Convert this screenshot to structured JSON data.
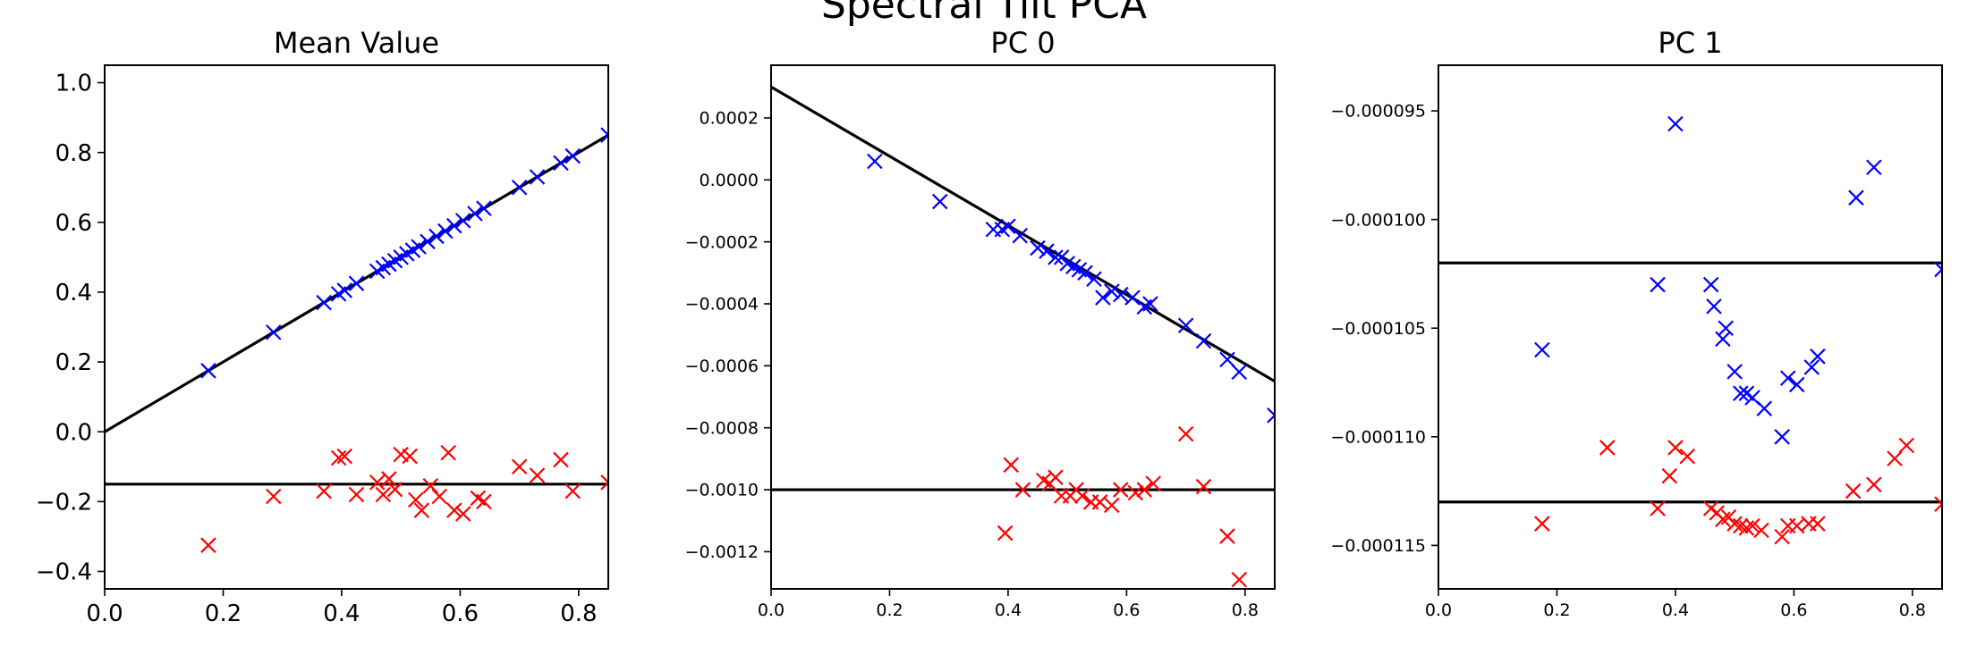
{
  "figure": {
    "suptitle": "Spectral Tilt PCA"
  },
  "chart_data": [
    {
      "type": "scatter",
      "title": "Mean Value",
      "xlim": [
        0.0,
        0.85
      ],
      "ylim": [
        -0.45,
        1.05
      ],
      "xticks": [
        0.0,
        0.2,
        0.4,
        0.6,
        0.8
      ],
      "xtick_labels": [
        "0.0",
        "0.2",
        "0.4",
        "0.6",
        "0.8"
      ],
      "yticks": [
        -0.4,
        -0.2,
        0.0,
        0.2,
        0.4,
        0.6,
        0.8,
        1.0
      ],
      "ytick_labels": [
        "−0.4",
        "−0.2",
        "0.0",
        "0.2",
        "0.4",
        "0.6",
        "0.8",
        "1.0"
      ],
      "lines": [
        {
          "x": [
            0.0,
            0.85
          ],
          "y": [
            0.0,
            0.85
          ]
        },
        {
          "x": [
            0.0,
            0.85
          ],
          "y": [
            -0.15,
            -0.15
          ]
        }
      ],
      "series": [
        {
          "color": "#0000ff",
          "marker": "x",
          "x": [
            0.175,
            0.285,
            0.37,
            0.395,
            0.405,
            0.425,
            0.46,
            0.47,
            0.48,
            0.49,
            0.5,
            0.51,
            0.52,
            0.53,
            0.545,
            0.56,
            0.575,
            0.59,
            0.605,
            0.625,
            0.64,
            0.7,
            0.73,
            0.77,
            0.79,
            0.85
          ],
          "y": [
            0.175,
            0.285,
            0.37,
            0.395,
            0.405,
            0.425,
            0.46,
            0.47,
            0.48,
            0.49,
            0.5,
            0.51,
            0.52,
            0.53,
            0.545,
            0.56,
            0.575,
            0.59,
            0.605,
            0.625,
            0.64,
            0.7,
            0.73,
            0.77,
            0.79,
            0.85
          ]
        },
        {
          "color": "#ff0000",
          "marker": "x",
          "x": [
            0.175,
            0.285,
            0.37,
            0.395,
            0.405,
            0.425,
            0.46,
            0.47,
            0.48,
            0.49,
            0.5,
            0.515,
            0.525,
            0.535,
            0.55,
            0.565,
            0.58,
            0.59,
            0.605,
            0.63,
            0.64,
            0.7,
            0.73,
            0.77,
            0.79,
            0.85
          ],
          "y": [
            -0.325,
            -0.185,
            -0.17,
            -0.075,
            -0.07,
            -0.18,
            -0.145,
            -0.18,
            -0.135,
            -0.165,
            -0.065,
            -0.07,
            -0.195,
            -0.225,
            -0.155,
            -0.185,
            -0.06,
            -0.225,
            -0.235,
            -0.19,
            -0.2,
            -0.1,
            -0.125,
            -0.08,
            -0.17,
            -0.145
          ]
        }
      ]
    },
    {
      "type": "scatter",
      "title": "PC 0",
      "xlim": [
        0.0,
        0.85
      ],
      "ylim": [
        -0.00132,
        0.00037
      ],
      "xticks": [
        0.0,
        0.2,
        0.4,
        0.6,
        0.8
      ],
      "xtick_labels": [
        "0.0",
        "0.2",
        "0.4",
        "0.6",
        "0.8"
      ],
      "yticks": [
        -0.0012,
        -0.001,
        -0.0008,
        -0.0006,
        -0.0004,
        -0.0002,
        0.0,
        0.0002
      ],
      "ytick_labels": [
        "−0.0012",
        "−0.0010",
        "−0.0008",
        "−0.0006",
        "−0.0004",
        "−0.0002",
        "0.0000",
        "0.0002"
      ],
      "lines": [
        {
          "x": [
            0.0,
            0.85
          ],
          "y": [
            0.0003,
            -0.00065
          ]
        },
        {
          "x": [
            0.0,
            0.85
          ],
          "y": [
            -0.001,
            -0.001
          ]
        }
      ],
      "series": [
        {
          "color": "#0000ff",
          "marker": "x",
          "x": [
            0.175,
            0.285,
            0.375,
            0.39,
            0.4,
            0.42,
            0.45,
            0.465,
            0.48,
            0.49,
            0.5,
            0.51,
            0.52,
            0.53,
            0.545,
            0.56,
            0.575,
            0.59,
            0.61,
            0.63,
            0.64,
            0.7,
            0.73,
            0.77,
            0.79,
            0.85
          ],
          "y": [
            6e-05,
            -7e-05,
            -0.00016,
            -0.00016,
            -0.00015,
            -0.00018,
            -0.00022,
            -0.00023,
            -0.00025,
            -0.00025,
            -0.00027,
            -0.00028,
            -0.00029,
            -0.0003,
            -0.00032,
            -0.00038,
            -0.00036,
            -0.00037,
            -0.00038,
            -0.00041,
            -0.0004,
            -0.00047,
            -0.00052,
            -0.00058,
            -0.00062,
            -0.00076
          ]
        },
        {
          "color": "#ff0000",
          "marker": "x",
          "x": [
            0.395,
            0.405,
            0.425,
            0.46,
            0.47,
            0.48,
            0.49,
            0.505,
            0.515,
            0.525,
            0.54,
            0.555,
            0.575,
            0.59,
            0.615,
            0.63,
            0.645,
            0.7,
            0.73,
            0.77,
            0.79
          ],
          "y": [
            -0.00114,
            -0.00092,
            -0.001,
            -0.00097,
            -0.00098,
            -0.00096,
            -0.00102,
            -0.00102,
            -0.001,
            -0.00102,
            -0.00104,
            -0.00104,
            -0.00105,
            -0.001,
            -0.00101,
            -0.001,
            -0.00098,
            -0.00082,
            -0.00099,
            -0.00115,
            -0.00129
          ]
        }
      ]
    },
    {
      "type": "scatter",
      "title": "PC 1",
      "xlim": [
        0.0,
        0.85
      ],
      "ylim": [
        -0.000117,
        -9.29e-05
      ],
      "xticks": [
        0.0,
        0.2,
        0.4,
        0.6,
        0.8
      ],
      "xtick_labels": [
        "0.0",
        "0.2",
        "0.4",
        "0.6",
        "0.8"
      ],
      "yticks": [
        -0.000115,
        -0.00011,
        -0.000105,
        -0.0001,
        -9.5e-05
      ],
      "ytick_labels": [
        "−0.000115",
        "−0.000110",
        "−0.000105",
        "−0.000100",
        "−0.000095"
      ],
      "lines": [
        {
          "x": [
            0.0,
            0.85
          ],
          "y": [
            -0.000102,
            -0.000102
          ]
        },
        {
          "x": [
            0.0,
            0.85
          ],
          "y": [
            -0.000113,
            -0.000113
          ]
        }
      ],
      "series": [
        {
          "color": "#0000ff",
          "marker": "x",
          "x": [
            0.175,
            0.37,
            0.4,
            0.46,
            0.465,
            0.48,
            0.485,
            0.5,
            0.51,
            0.52,
            0.53,
            0.55,
            0.58,
            0.59,
            0.605,
            0.63,
            0.64,
            0.705,
            0.735,
            0.85
          ],
          "y": [
            -0.000106,
            -0.000103,
            -9.56e-05,
            -0.000103,
            -0.000104,
            -0.0001055,
            -0.000105,
            -0.000107,
            -0.000108,
            -0.000108,
            -0.0001082,
            -0.0001087,
            -0.00011,
            -0.0001073,
            -0.0001076,
            -0.0001068,
            -0.0001063,
            -9.9e-05,
            -9.76e-05,
            -0.0001023
          ]
        },
        {
          "color": "#ff0000",
          "marker": "x",
          "x": [
            0.175,
            0.285,
            0.37,
            0.39,
            0.4,
            0.42,
            0.46,
            0.47,
            0.48,
            0.49,
            0.5,
            0.51,
            0.52,
            0.53,
            0.545,
            0.58,
            0.59,
            0.605,
            0.625,
            0.64,
            0.7,
            0.735,
            0.77,
            0.79,
            0.85
          ],
          "y": [
            -0.000114,
            -0.0001105,
            -0.0001133,
            -0.0001118,
            -0.0001105,
            -0.0001109,
            -0.0001133,
            -0.0001135,
            -0.0001138,
            -0.0001137,
            -0.000114,
            -0.0001141,
            -0.0001142,
            -0.0001141,
            -0.0001143,
            -0.0001146,
            -0.0001141,
            -0.0001141,
            -0.000114,
            -0.000114,
            -0.0001125,
            -0.0001122,
            -0.000111,
            -0.0001104,
            -0.0001131
          ]
        }
      ]
    }
  ]
}
